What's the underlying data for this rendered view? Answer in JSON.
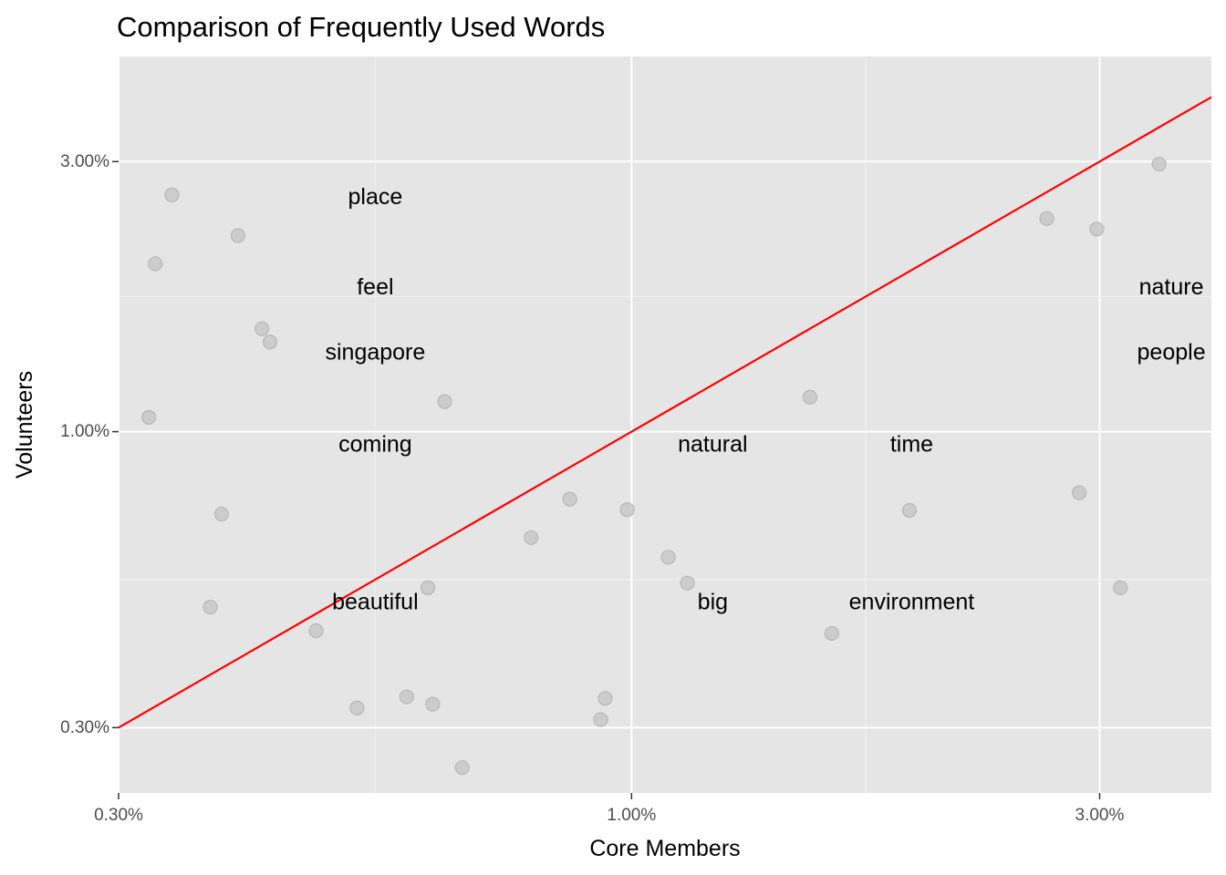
{
  "chart_data": {
    "type": "scatter",
    "title": "Comparison of Frequently Used Words",
    "xlabel": "Core Members",
    "ylabel": "Volunteers",
    "x_scale": "log10",
    "y_scale": "log10",
    "xlim": [
      0.3,
      3.9
    ],
    "ylim": [
      0.23,
      4.6
    ],
    "x_ticks": [
      {
        "value": 0.3,
        "label": "0.30%"
      },
      {
        "value": 1.0,
        "label": "1.00%"
      },
      {
        "value": 3.0,
        "label": "3.00%"
      }
    ],
    "y_ticks": [
      {
        "value": 0.3,
        "label": "0.30%"
      },
      {
        "value": 1.0,
        "label": "1.00%"
      },
      {
        "value": 3.0,
        "label": "3.00%"
      }
    ],
    "x_minor": [
      0.5477,
      1.732
    ],
    "y_minor": [
      0.5477,
      1.732
    ],
    "grid": true,
    "reference_line": {
      "description": "y = x",
      "color": "#ff0000"
    },
    "points_color": "#c8c8c8",
    "points": [
      {
        "x": 0.34,
        "y": 2.62
      },
      {
        "x": 0.327,
        "y": 1.98
      },
      {
        "x": 0.397,
        "y": 2.22
      },
      {
        "x": 0.322,
        "y": 1.06
      },
      {
        "x": 0.42,
        "y": 1.52
      },
      {
        "x": 0.428,
        "y": 1.44
      },
      {
        "x": 0.382,
        "y": 0.715
      },
      {
        "x": 0.372,
        "y": 0.49
      },
      {
        "x": 0.477,
        "y": 0.445
      },
      {
        "x": 0.525,
        "y": 0.325
      },
      {
        "x": 0.59,
        "y": 0.34
      },
      {
        "x": 0.627,
        "y": 0.33
      },
      {
        "x": 0.62,
        "y": 0.53
      },
      {
        "x": 0.645,
        "y": 1.13
      },
      {
        "x": 0.672,
        "y": 0.255
      },
      {
        "x": 0.79,
        "y": 0.65
      },
      {
        "x": 0.865,
        "y": 0.76
      },
      {
        "x": 0.93,
        "y": 0.31
      },
      {
        "x": 0.94,
        "y": 0.338
      },
      {
        "x": 0.99,
        "y": 0.728
      },
      {
        "x": 1.09,
        "y": 0.6
      },
      {
        "x": 1.14,
        "y": 0.54
      },
      {
        "x": 1.52,
        "y": 1.15
      },
      {
        "x": 1.6,
        "y": 0.44
      },
      {
        "x": 1.92,
        "y": 0.726
      },
      {
        "x": 2.65,
        "y": 2.38
      },
      {
        "x": 2.86,
        "y": 0.78
      },
      {
        "x": 2.98,
        "y": 2.28
      },
      {
        "x": 3.15,
        "y": 0.53
      },
      {
        "x": 3.45,
        "y": 2.97
      }
    ],
    "word_labels": [
      {
        "text": "place",
        "x": 0.548,
        "y": 2.6
      },
      {
        "text": "feel",
        "x": 0.548,
        "y": 1.8
      },
      {
        "text": "singapore",
        "x": 0.548,
        "y": 1.38
      },
      {
        "text": "coming",
        "x": 0.548,
        "y": 0.95
      },
      {
        "text": "beautiful",
        "x": 0.548,
        "y": 0.5
      },
      {
        "text": "natural",
        "x": 1.21,
        "y": 0.95
      },
      {
        "text": "big",
        "x": 1.21,
        "y": 0.5
      },
      {
        "text": "time",
        "x": 1.93,
        "y": 0.95
      },
      {
        "text": "environment",
        "x": 1.93,
        "y": 0.5
      },
      {
        "text": "nature",
        "x": 3.55,
        "y": 1.8
      },
      {
        "text": "people",
        "x": 3.55,
        "y": 1.38
      }
    ]
  }
}
